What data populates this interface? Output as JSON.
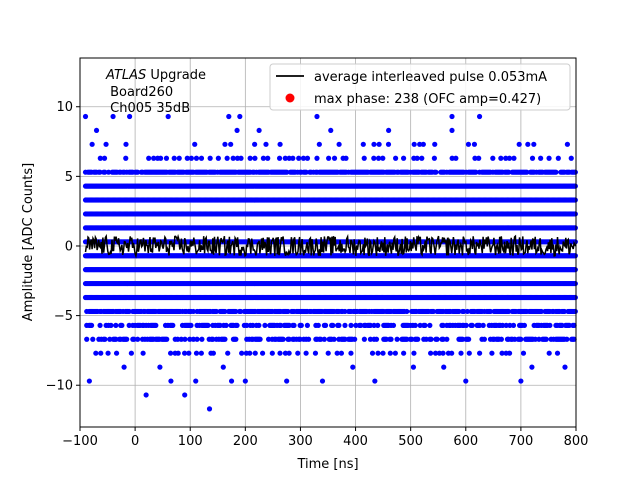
{
  "chart_data": {
    "type": "scatter",
    "title": "",
    "xlabel": "Time [ns]",
    "ylabel": "Amplitude [ADC Counts]",
    "xlim": [
      -100,
      800
    ],
    "ylim": [
      -13,
      13.5
    ],
    "x_ticks": [
      -100,
      0,
      100,
      200,
      300,
      400,
      500,
      600,
      700,
      800
    ],
    "x_tick_labels": [
      "−100",
      "0",
      "100",
      "200",
      "300",
      "400",
      "500",
      "600",
      "700",
      "800"
    ],
    "y_ticks": [
      -10,
      -5,
      0,
      5,
      10
    ],
    "y_tick_labels": [
      "−10",
      "−5",
      "0",
      "5",
      "10"
    ],
    "grid": true,
    "legend_position": "top-right",
    "annotation": {
      "italic": "ATLAS",
      "line1_rest": " Upgrade",
      "line2": " Board260",
      "line3": " Ch005 35dB"
    },
    "series": [
      {
        "name": "average interleaved pulse 0.053mA",
        "kind": "line",
        "color": "#000000",
        "x_range": [
          -90,
          800
        ],
        "typical_y_range": [
          -0.6,
          0.6
        ]
      },
      {
        "name": "max phase: 238 (OFC amp=0.427)",
        "kind": "marker",
        "color": "#ff0000",
        "x": [],
        "y": []
      },
      {
        "name": "",
        "kind": "scatter",
        "color": "#0000ff",
        "description_levels_dense": [
          -6.7,
          -5.7,
          -4.7,
          -3.7,
          -2.7,
          -1.7,
          -0.7,
          0.3,
          1.3,
          2.3,
          3.3,
          4.3,
          5.3
        ],
        "x_range": [
          -90,
          800
        ],
        "sparse_points": [
          [
            -90,
            9.3
          ],
          [
            -40,
            9.3
          ],
          [
            -10,
            9.3
          ],
          [
            60,
            9.3
          ],
          [
            170,
            9.3
          ],
          [
            190,
            9.3
          ],
          [
            330,
            9.3
          ],
          [
            575,
            9.3
          ],
          [
            625,
            9.3
          ],
          [
            -70,
            8.3
          ],
          [
            185,
            8.3
          ],
          [
            225,
            8.3
          ],
          [
            355,
            8.3
          ],
          [
            460,
            8.3
          ],
          [
            575,
            8.3
          ],
          [
            -83,
            -9.7
          ],
          [
            20,
            -10.7
          ],
          [
            90,
            -10.7
          ],
          [
            135,
            -11.7
          ],
          [
            65,
            -9.7
          ],
          [
            110,
            -9.7
          ],
          [
            175,
            -9.7
          ],
          [
            200,
            -9.7
          ],
          [
            275,
            -9.7
          ],
          [
            340,
            -9.7
          ],
          [
            435,
            -9.7
          ],
          [
            600,
            -9.7
          ],
          [
            700,
            -9.7
          ],
          [
            -20,
            -8.7
          ],
          [
            45,
            -8.7
          ],
          [
            160,
            -8.7
          ],
          [
            395,
            -8.7
          ],
          [
            505,
            -8.7
          ],
          [
            560,
            -8.7
          ],
          [
            720,
            -8.7
          ],
          [
            780,
            -8.7
          ]
        ]
      }
    ]
  }
}
